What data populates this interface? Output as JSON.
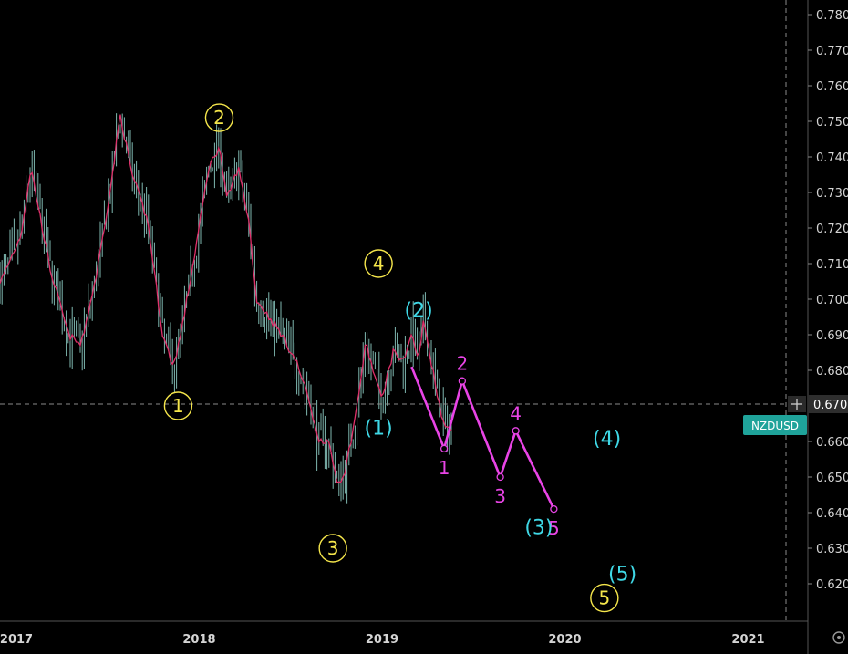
{
  "symbol": "NZDUSD",
  "colors": {
    "background": "#000000",
    "candle": "#7fb8b0",
    "moving_average": "#e0306a",
    "wave_primary": "#f5e64b",
    "wave_intermediate": "#3fd8e6",
    "wave_minor": "#e944e6",
    "symbol_badge": "#1fa39a",
    "crosshair": "#8a8a8a"
  },
  "chart_data": {
    "type": "line",
    "symbol": "NZDUSD",
    "x_axis": {
      "ticks": [
        "2017",
        "2018",
        "2019",
        "2020",
        "2021"
      ]
    },
    "y_axis": {
      "ticks": [
        "0.780",
        "0.770",
        "0.760",
        "0.750",
        "0.740",
        "0.730",
        "0.720",
        "0.710",
        "0.700",
        "0.690",
        "0.680",
        "0.670",
        "0.660",
        "0.650",
        "0.640",
        "0.630",
        "0.620"
      ],
      "ylim": [
        0.612,
        0.782
      ],
      "tick_values": [
        0.78,
        0.77,
        0.76,
        0.75,
        0.74,
        0.73,
        0.72,
        0.71,
        0.7,
        0.69,
        0.68,
        0.67,
        0.66,
        0.65,
        0.64,
        0.63,
        0.62
      ]
    },
    "crosshair": {
      "price": "0.670",
      "value": 0.67
    },
    "price_series": {
      "name": "NZDUSD",
      "x": [
        "2016-12-01",
        "2017-01-10",
        "2017-01-30",
        "2017-03-10",
        "2017-04-15",
        "2017-05-10",
        "2017-06-10",
        "2017-07-10",
        "2017-07-27",
        "2017-08-20",
        "2017-09-20",
        "2017-10-20",
        "2017-11-10",
        "2017-11-25",
        "2017-12-20",
        "2018-01-20",
        "2018-02-10",
        "2018-02-25",
        "2018-03-20",
        "2018-04-10",
        "2018-04-25",
        "2018-05-15",
        "2018-06-15",
        "2018-07-15",
        "2018-08-10",
        "2018-08-25",
        "2018-09-15",
        "2018-10-05",
        "2018-10-20",
        "2018-11-10",
        "2018-11-30",
        "2018-12-10",
        "2018-12-31",
        "2019-01-25",
        "2019-02-10",
        "2019-03-01",
        "2019-03-15",
        "2019-03-25",
        "2019-04-15",
        "2019-05-05"
      ],
      "values": [
        0.705,
        0.718,
        0.737,
        0.708,
        0.69,
        0.687,
        0.707,
        0.733,
        0.752,
        0.735,
        0.722,
        0.69,
        0.681,
        0.69,
        0.71,
        0.737,
        0.743,
        0.728,
        0.737,
        0.722,
        0.7,
        0.696,
        0.69,
        0.682,
        0.671,
        0.661,
        0.66,
        0.648,
        0.652,
        0.668,
        0.688,
        0.682,
        0.672,
        0.686,
        0.682,
        0.69,
        0.683,
        0.694,
        0.678,
        0.664
      ]
    },
    "elliott_waves": [
      {
        "label": "1",
        "degree": "primary",
        "x": "2017-11-20",
        "y": 0.67
      },
      {
        "label": "2",
        "degree": "primary",
        "x": "2018-02-10",
        "y": 0.751
      },
      {
        "label": "3",
        "degree": "primary",
        "x": "2018-09-25",
        "y": 0.63
      },
      {
        "label": "4",
        "degree": "primary",
        "x": "2018-12-25",
        "y": 0.71
      },
      {
        "label": "5",
        "degree": "primary",
        "x": "2020-03-20",
        "y": 0.616
      },
      {
        "label": "(1)",
        "degree": "intermediate",
        "x": "2018-12-25",
        "y": 0.664
      },
      {
        "label": "(2)",
        "degree": "intermediate",
        "x": "2019-03-15",
        "y": 0.697
      },
      {
        "label": "(3)",
        "degree": "intermediate",
        "x": "2019-11-10",
        "y": 0.636
      },
      {
        "label": "(4)",
        "degree": "intermediate",
        "x": "2020-03-25",
        "y": 0.661
      },
      {
        "label": "(5)",
        "degree": "intermediate",
        "x": "2020-04-25",
        "y": 0.623
      }
    ],
    "projection_path": {
      "x": [
        "2019-03-01",
        "2019-05-05",
        "2019-06-10",
        "2019-08-25",
        "2019-09-25",
        "2019-12-10"
      ],
      "y": [
        0.681,
        0.658,
        0.677,
        0.65,
        0.663,
        0.641
      ],
      "labels": [
        "",
        "1",
        "2",
        "3",
        "4",
        "5"
      ]
    }
  }
}
